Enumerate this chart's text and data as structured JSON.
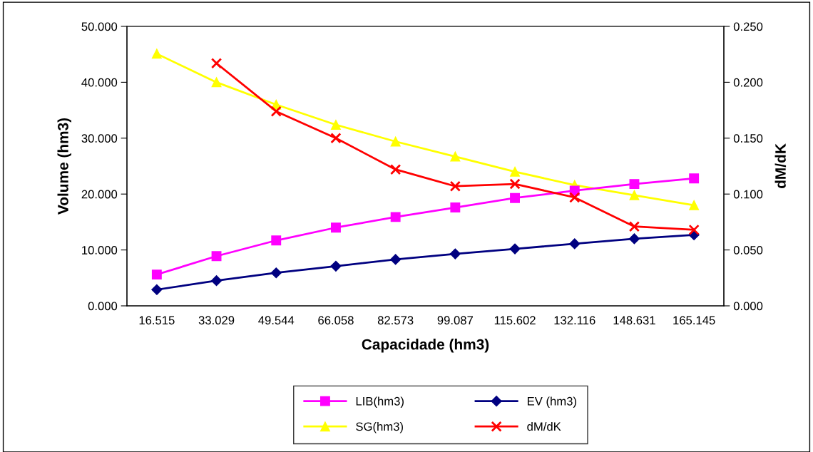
{
  "chart_data": {
    "type": "line",
    "xlabel": "Capacidade (hm3)",
    "ylabel": "Volume (hm3)",
    "y2label": "dM/dK",
    "categories": [
      "16.515",
      "33.029",
      "49.544",
      "66.058",
      "82.573",
      "99.087",
      "115.602",
      "132.116",
      "148.631",
      "165.145"
    ],
    "series": [
      {
        "name": "LIB(hm3)",
        "color": "#ff00ff",
        "marker": "square",
        "values": [
          5.6,
          8.9,
          11.7,
          14.0,
          15.9,
          17.6,
          19.3,
          20.6,
          21.8,
          22.8
        ]
      },
      {
        "name": "EV (hm3)",
        "color": "#000080",
        "marker": "diamond",
        "values": [
          2.9,
          4.5,
          5.9,
          7.1,
          8.3,
          9.3,
          10.2,
          11.1,
          12.0,
          12.7
        ]
      },
      {
        "name": "SG(hm3)",
        "color": "#ffff00",
        "marker": "triangle",
        "values": [
          45.1,
          40.0,
          36.0,
          32.4,
          29.4,
          26.7,
          24.0,
          21.6,
          19.8,
          18.0
        ]
      },
      {
        "name": "dM/dK",
        "color": "#ff0000",
        "marker": "cross",
        "axis": "y2",
        "values": [
          null,
          0.217,
          0.174,
          0.15,
          0.122,
          0.107,
          0.109,
          0.097,
          0.071,
          0.068
        ]
      }
    ],
    "ylim": [
      0,
      50
    ],
    "yticks": [
      {
        "value": 0,
        "label": "0.000"
      },
      {
        "value": 10,
        "label": "10.000"
      },
      {
        "value": 20,
        "label": "20.000"
      },
      {
        "value": 30,
        "label": "30.000"
      },
      {
        "value": 40,
        "label": "40.000"
      },
      {
        "value": 50,
        "label": "50.000"
      }
    ],
    "y2lim": [
      0,
      0.25
    ],
    "y2ticks": [
      {
        "value": 0,
        "label": "0.000"
      },
      {
        "value": 0.05,
        "label": "0.050"
      },
      {
        "value": 0.1,
        "label": "0.100"
      },
      {
        "value": 0.15,
        "label": "0.150"
      },
      {
        "value": 0.2,
        "label": "0.200"
      },
      {
        "value": 0.25,
        "label": "0.250"
      }
    ],
    "grid": false,
    "legend": "bottom",
    "line_style": "solid"
  }
}
